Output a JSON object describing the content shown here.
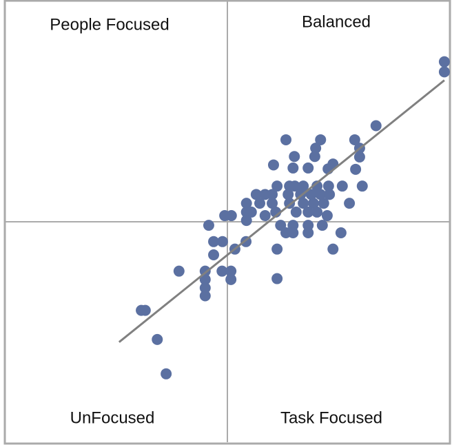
{
  "chart_data": {
    "type": "scatter",
    "quadrant_labels": {
      "top_left": "People Focused",
      "top_right": "Balanced",
      "bottom_left": "UnFocused",
      "bottom_right": "Task Focused"
    },
    "xlim": [
      -5,
      5
    ],
    "ylim": [
      -5,
      5
    ],
    "quadrant_split": {
      "x": 0,
      "y": 0
    },
    "series": [
      {
        "color": "#5b70a1",
        "x": [
          4.89,
          4.89,
          3.35,
          1.32,
          2.1,
          2.87,
          1.99,
          2.98,
          1.51,
          1.97,
          2.98,
          1.04,
          1.48,
          1.82,
          2.38,
          2.27,
          2.89,
          1.12,
          1.4,
          1.52,
          1.71,
          2.02,
          2.28,
          2.59,
          3.04,
          0.65,
          0.85,
          1.01,
          1.37,
          1.65,
          1.89,
          2.1,
          2.3,
          0.43,
          0.73,
          1.01,
          1.4,
          1.71,
          1.94,
          2.17,
          2.75,
          0.43,
          0.54,
          0.85,
          1.09,
          1.55,
          1.82,
          2.02,
          2.25,
          -0.06,
          0.09,
          0.43,
          1.2,
          1.48,
          1.82,
          2.14,
          -0.42,
          1.32,
          1.48,
          1.82,
          2.56,
          -0.31,
          -0.11,
          0.42,
          1.12,
          2.38,
          0.17,
          -0.31,
          -1.09,
          -0.5,
          -0.12,
          0.08,
          -0.5,
          0.08,
          1.12,
          -0.5,
          -0.5,
          -1.94,
          -1.85,
          -1.58,
          -1.38
        ],
        "y": [
          3.63,
          3.4,
          2.18,
          1.86,
          1.86,
          1.86,
          1.67,
          1.67,
          1.48,
          1.48,
          1.47,
          1.29,
          1.22,
          1.22,
          1.31,
          1.2,
          1.19,
          0.81,
          0.81,
          0.81,
          0.81,
          0.81,
          0.81,
          0.81,
          0.81,
          0.62,
          0.62,
          0.62,
          0.62,
          0.62,
          0.62,
          0.62,
          0.62,
          0.42,
          0.42,
          0.42,
          0.42,
          0.42,
          0.42,
          0.42,
          0.42,
          0.22,
          0.22,
          0.14,
          0.22,
          0.22,
          0.22,
          0.22,
          0.14,
          0.14,
          0.14,
          0.03,
          -0.08,
          -0.08,
          -0.08,
          -0.08,
          -0.08,
          -0.25,
          -0.25,
          -0.25,
          -0.25,
          -0.45,
          -0.45,
          -0.45,
          -0.62,
          -0.62,
          -0.62,
          -0.75,
          -1.12,
          -1.12,
          -1.12,
          -1.12,
          -1.31,
          -1.31,
          -1.29,
          -1.5,
          -1.68,
          -2.01,
          -2.01,
          -2.67,
          -3.45
        ]
      }
    ],
    "trendline": {
      "color": "#808080",
      "x": [
        -2.44,
        4.89
      ],
      "y": [
        -2.73,
        3.21
      ]
    }
  }
}
